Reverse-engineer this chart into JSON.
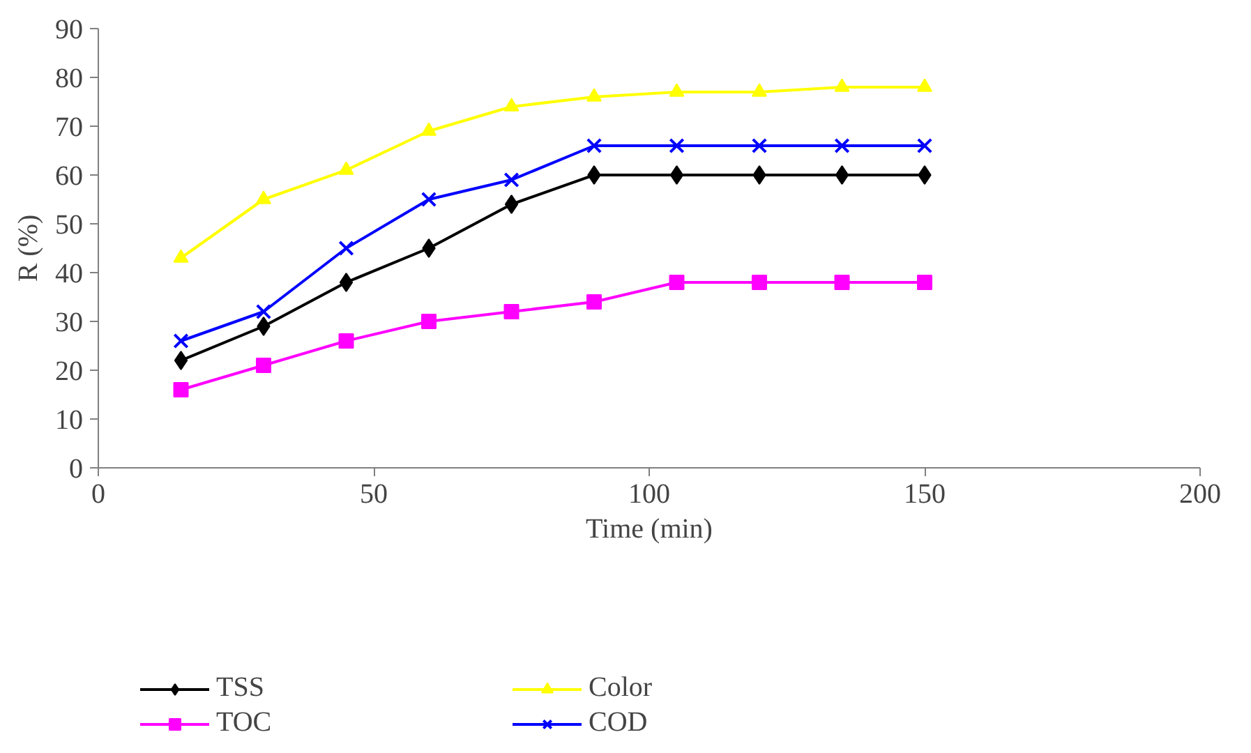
{
  "chart_data": {
    "type": "line",
    "xlabel": "Time (min)",
    "ylabel": "R (%)",
    "x": [
      15,
      30,
      45,
      60,
      75,
      90,
      105,
      120,
      135,
      150
    ],
    "series": [
      {
        "name": "TSS",
        "color": "#000000",
        "marker": "diamond",
        "values": [
          22,
          29,
          38,
          45,
          54,
          60,
          60,
          60,
          60,
          60
        ]
      },
      {
        "name": "TOC",
        "color": "#ff00ff",
        "marker": "square",
        "values": [
          16,
          21,
          26,
          30,
          32,
          34,
          38,
          38,
          38,
          38
        ]
      },
      {
        "name": "Color",
        "color": "#ffff00",
        "marker": "triangle",
        "values": [
          43,
          55,
          61,
          69,
          74,
          76,
          77,
          77,
          78,
          78
        ]
      },
      {
        "name": "COD",
        "color": "#0000ff",
        "marker": "cross",
        "values": [
          26,
          32,
          45,
          55,
          59,
          66,
          66,
          66,
          66,
          66
        ]
      }
    ],
    "xlim": [
      0,
      200
    ],
    "xticks": [
      0,
      50,
      100,
      150,
      200
    ],
    "ylim": [
      0,
      90
    ],
    "yticks": [
      0,
      10,
      20,
      30,
      40,
      50,
      60,
      70,
      80,
      90
    ],
    "grid": false,
    "legend": "bottom",
    "line_style": "solid"
  }
}
